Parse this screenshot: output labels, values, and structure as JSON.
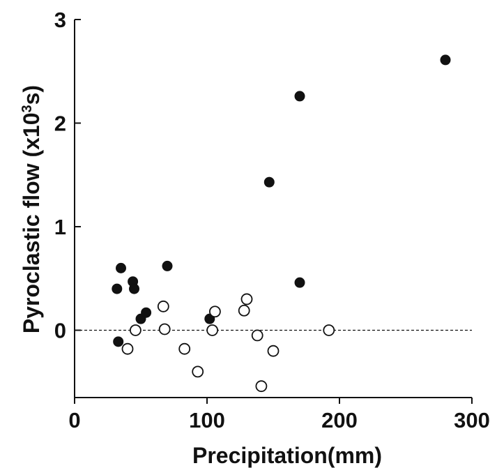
{
  "chart_data": {
    "type": "scatter",
    "title": "",
    "xlabel": "Precipitation(mm)",
    "ylabel_main": "Pyroclastic flow (x10",
    "ylabel_sup": "3",
    "ylabel_end": "s)",
    "xlim": [
      0,
      300
    ],
    "ylim": [
      -0.65,
      3
    ],
    "x_ticks": [
      0,
      100,
      200,
      300
    ],
    "x_tick_labels": [
      "0",
      "100",
      "200",
      "300"
    ],
    "y_ticks": [
      0,
      1,
      2,
      3
    ],
    "y_tick_labels": [
      "0",
      "1",
      "2",
      "3"
    ],
    "grid": false,
    "reference_line": {
      "y": 0,
      "style": "dashed"
    },
    "colors": {
      "axis": "#111111",
      "filled_marker": "#111111",
      "open_marker": "#ffffff"
    },
    "series": [
      {
        "marker": "filled-circle",
        "points": [
          [
            32,
            0.4
          ],
          [
            35,
            0.6
          ],
          [
            44,
            0.47
          ],
          [
            45,
            0.4
          ],
          [
            70,
            0.62
          ],
          [
            50,
            0.11
          ],
          [
            54,
            0.17
          ],
          [
            33,
            -0.11
          ],
          [
            102,
            0.11
          ],
          [
            147,
            1.43
          ],
          [
            170,
            2.26
          ],
          [
            170,
            0.46
          ],
          [
            280,
            2.61
          ]
        ]
      },
      {
        "marker": "open-circle",
        "points": [
          [
            40,
            -0.18
          ],
          [
            46,
            0.0
          ],
          [
            67,
            0.23
          ],
          [
            68,
            0.01
          ],
          [
            83,
            -0.18
          ],
          [
            93,
            -0.4
          ],
          [
            104,
            0.0
          ],
          [
            106,
            0.18
          ],
          [
            128,
            0.19
          ],
          [
            130,
            0.3
          ],
          [
            138,
            -0.05
          ],
          [
            141,
            -0.54
          ],
          [
            150,
            -0.2
          ],
          [
            192,
            0.0
          ]
        ]
      }
    ]
  }
}
